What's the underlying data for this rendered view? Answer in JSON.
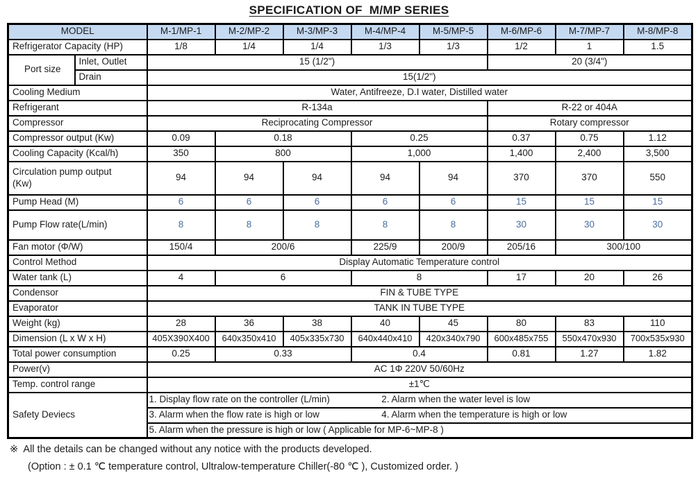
{
  "title": "SPECIFICATION OF  M/MP SERIES",
  "colors": {
    "header_bg": "#c5d9f1",
    "blue_text": "#4a6d9d",
    "border": "#000000",
    "text": "#1c1c1c"
  },
  "table": {
    "header": {
      "model": "MODEL",
      "columns": [
        "M-1/MP-1",
        "M-2/MP-2",
        "M-3/MP-3",
        "M-4/MP-4",
        "M-5/MP-5",
        "M-6/MP-6",
        "M-7/MP-7",
        "M-8/MP-8"
      ]
    },
    "rows": [
      {
        "label": "Refrigerator Capacity (HP)",
        "cells": [
          {
            "t": "1/8"
          },
          {
            "t": "1/4"
          },
          {
            "t": "1/4"
          },
          {
            "t": "1/3"
          },
          {
            "t": "1/3"
          },
          {
            "t": "1/2"
          },
          {
            "t": "1"
          },
          {
            "t": "1.5"
          }
        ]
      },
      {
        "label": "Port size",
        "label_rowspan": 2,
        "sub": "Inlet, Outlet",
        "cells": [
          {
            "t": "15 (1/2\")",
            "cs": 5
          },
          {
            "t": "20 (3/4\")",
            "cs": 3
          }
        ]
      },
      {
        "sub": "Drain",
        "cells": [
          {
            "t": "15(1/2\")",
            "cs": 8
          }
        ]
      },
      {
        "label": "Cooling Medium",
        "cells": [
          {
            "t": "Water, Antifreeze, D.I water, Distilled water",
            "cs": 8
          }
        ]
      },
      {
        "label": "Refrigerant",
        "cells": [
          {
            "t": "R-134a",
            "cs": 5
          },
          {
            "t": "R-22 or 404A",
            "cs": 3
          }
        ]
      },
      {
        "label": "Compressor",
        "cells": [
          {
            "t": "Reciprocating Compressor",
            "cs": 5
          },
          {
            "t": "Rotary compressor",
            "cs": 3
          }
        ]
      },
      {
        "label": "Compressor output (Kw)",
        "cells": [
          {
            "t": "0.09"
          },
          {
            "t": "0.18",
            "cs": 2
          },
          {
            "t": "0.25",
            "cs": 2
          },
          {
            "t": "0.37"
          },
          {
            "t": "0.75"
          },
          {
            "t": "1.12"
          }
        ]
      },
      {
        "label": "Cooling Capacity (Kcal/h)",
        "cells": [
          {
            "t": "350"
          },
          {
            "t": "800",
            "cs": 2
          },
          {
            "t": "1,000",
            "cs": 2
          },
          {
            "t": "1,400"
          },
          {
            "t": "2,400"
          },
          {
            "t": "3,500"
          }
        ]
      },
      {
        "label": "Circulation pump output",
        "label2": "(Kw)",
        "h": 48,
        "cells": [
          {
            "t": "94"
          },
          {
            "t": "94"
          },
          {
            "t": "94"
          },
          {
            "t": "94"
          },
          {
            "t": "94"
          },
          {
            "t": "370"
          },
          {
            "t": "370"
          },
          {
            "t": "550"
          }
        ]
      },
      {
        "label": "Pump Head (M)",
        "blue": true,
        "cells": [
          {
            "t": "6"
          },
          {
            "t": "6"
          },
          {
            "t": "6"
          },
          {
            "t": "6"
          },
          {
            "t": "6"
          },
          {
            "t": "15"
          },
          {
            "t": "15"
          },
          {
            "t": "15"
          }
        ]
      },
      {
        "label": "Pump Flow rate(L/min)",
        "blue": true,
        "h": 43,
        "cells": [
          {
            "t": "8"
          },
          {
            "t": "8"
          },
          {
            "t": "8"
          },
          {
            "t": "8"
          },
          {
            "t": "8"
          },
          {
            "t": "30"
          },
          {
            "t": "30"
          },
          {
            "t": "30"
          }
        ]
      },
      {
        "label": "Fan motor (Φ/W)",
        "cells": [
          {
            "t": "150/4"
          },
          {
            "t": "200/6",
            "cs": 2
          },
          {
            "t": "225/9"
          },
          {
            "t": "200/9"
          },
          {
            "t": "205/16"
          },
          {
            "t": "300/100",
            "cs": 2
          }
        ]
      },
      {
        "label": "Control Method",
        "cells": [
          {
            "t": "Display Automatic Temperature control",
            "cs": 8
          }
        ]
      },
      {
        "label": "Water tank (L)",
        "cells": [
          {
            "t": "4"
          },
          {
            "t": "6",
            "cs": 2
          },
          {
            "t": "8",
            "cs": 2
          },
          {
            "t": "17"
          },
          {
            "t": "20"
          },
          {
            "t": "26"
          }
        ]
      },
      {
        "label": "Condensor",
        "cells": [
          {
            "t": "FIN & TUBE TYPE",
            "cs": 8
          }
        ]
      },
      {
        "label": "Evaporator",
        "cells": [
          {
            "t": "TANK IN TUBE TYPE",
            "cs": 8
          }
        ]
      },
      {
        "label": "Weight (kg)",
        "cells": [
          {
            "t": "28"
          },
          {
            "t": "36"
          },
          {
            "t": "38"
          },
          {
            "t": "40"
          },
          {
            "t": "45"
          },
          {
            "t": "80"
          },
          {
            "t": "83"
          },
          {
            "t": "110"
          }
        ]
      },
      {
        "label": "Dimension (L x W x H)",
        "small": true,
        "cells": [
          {
            "t": "405X390X400"
          },
          {
            "t": "640x350x410"
          },
          {
            "t": "405x335x730"
          },
          {
            "t": "640x440x410"
          },
          {
            "t": "420x340x790"
          },
          {
            "t": "600x485x755"
          },
          {
            "t": "550x470x930"
          },
          {
            "t": "700x535x930"
          }
        ]
      },
      {
        "label": "Total power consumption",
        "cells": [
          {
            "t": "0.25"
          },
          {
            "t": "0.33",
            "cs": 2
          },
          {
            "t": "0.4",
            "cs": 2
          },
          {
            "t": "0.81"
          },
          {
            "t": "1.27"
          },
          {
            "t": "1.82"
          }
        ]
      },
      {
        "label": "Power(v)",
        "cells": [
          {
            "t": "AC 1Φ 220V 50/60Hz",
            "cs": 8
          }
        ]
      },
      {
        "label": "Temp. control range",
        "cells": [
          {
            "t": "±1℃",
            "cs": 8
          }
        ]
      }
    ],
    "safety": {
      "label": "Safety Deviecs",
      "rows": [
        {
          "items": [
            "1. Display flow rate on the controller (L/min)",
            "2. Alarm when the water level is low"
          ]
        },
        {
          "items": [
            "3. Alarm when the flow rate is high or low",
            "4. Alarm when the temperature is high or low"
          ]
        },
        {
          "items": [
            "5. Alarm when the pressure is high or low ( Applicable for MP-6~MP-8 )"
          ]
        }
      ]
    }
  },
  "notes": [
    "※  All the details can be changed without any notice with the products developed.",
    "(Option : ± 0.1 ℃ temperature control, Ultralow-temperature Chiller(-80 ℃ ), Customized order. )"
  ]
}
